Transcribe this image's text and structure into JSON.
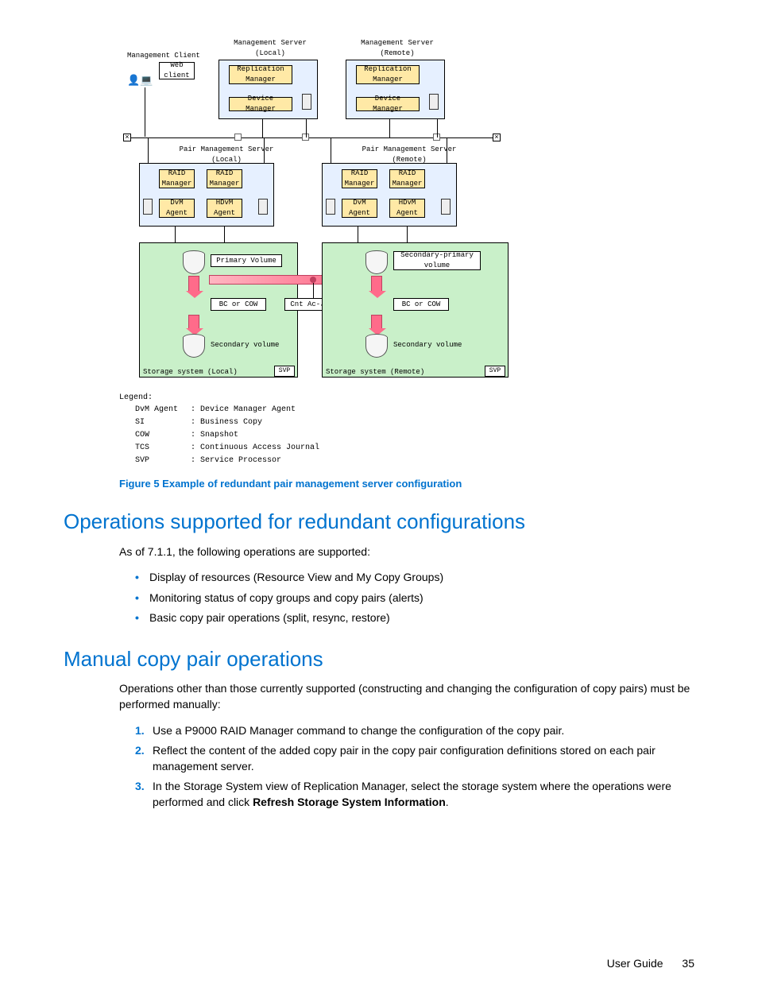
{
  "diagram": {
    "mgmt_client": "Management Client",
    "web_client": "Web\nclient",
    "mgmt_server_local": "Management Server\n(Local)",
    "mgmt_server_remote": "Management Server\n(Remote)",
    "replication_manager": "Replication\nManager",
    "device_manager": "Device Manager",
    "pair_mgmt_local": "Pair Management Server\n(Local)",
    "pair_mgmt_remote": "Pair Management Server\n(Remote)",
    "raid_manager": "RAID\nManager",
    "dvm_agent": "DvM\nAgent",
    "hdvm_agent": "HDvM\nAgent",
    "primary_volume": "Primary Volume",
    "secondary_primary": "Secondary-primary\nvolume",
    "bc_cow": "BC or COW",
    "cnt_acj": "Cnt Ac-J",
    "secondary_volume": "Secondary volume",
    "storage_local": "Storage system (Local)",
    "storage_remote": "Storage system (Remote)",
    "svp": "SVP",
    "legend_title": "Legend:",
    "legend": [
      {
        "k": "DvM Agent",
        "v": ": Device Manager Agent"
      },
      {
        "k": "SI",
        "v": ": Business Copy"
      },
      {
        "k": "COW",
        "v": ": Snapshot"
      },
      {
        "k": "TCS",
        "v": ": Continuous Access Journal"
      },
      {
        "k": "SVP",
        "v": ": Service Processor"
      }
    ],
    "colors": {
      "server_bg": "#e6f0ff",
      "app_bg": "#ffe9a6",
      "storage_bg": "#c9f0c9",
      "arrow": "#ff6b8a",
      "accent": "#0073cf"
    }
  },
  "caption": "Figure 5 Example of redundant pair management server configuration",
  "section1": {
    "title": "Operations supported for redundant configurations",
    "intro": "As of 7.1.1, the following operations are supported:",
    "bullets": [
      "Display of resources (Resource View and My Copy Groups)",
      "Monitoring status of copy groups and copy pairs (alerts)",
      "Basic copy pair operations (split, resync, restore)"
    ]
  },
  "section2": {
    "title": "Manual copy pair operations",
    "intro": "Operations other than those currently supported (constructing and changing the configuration of copy pairs) must be performed manually:",
    "steps": [
      "Use a P9000 RAID Manager command to change the configuration of the copy pair.",
      "Reflect the content of the added copy pair in the copy pair configuration definitions stored on each pair management server.",
      "In the Storage System view of Replication Manager, select the storage system where the operations were performed and click Refresh Storage System Information."
    ],
    "step3_bold": "Refresh Storage System Information"
  },
  "footer": {
    "label": "User Guide",
    "page": "35"
  }
}
